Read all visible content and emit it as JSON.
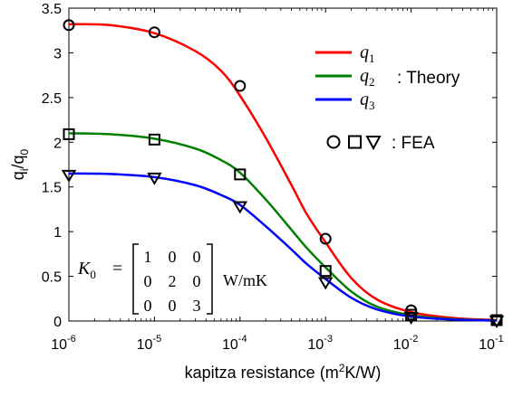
{
  "chart_data": {
    "type": "line",
    "xlabel": "kapitza resistance (m",
    "xlabel_sup": "2",
    "xlabel_tail": "K/W)",
    "ylabel_base": "q",
    "ylabel_sub1": "i",
    "ylabel_mid": "/q",
    "ylabel_sub2": "0",
    "x_scale": "log",
    "xlim": [
      1e-06,
      0.1
    ],
    "ylim": [
      0,
      3.5
    ],
    "x_ticks": [
      {
        "base": "10",
        "exp": "-6"
      },
      {
        "base": "10",
        "exp": "-5"
      },
      {
        "base": "10",
        "exp": "-4"
      },
      {
        "base": "10",
        "exp": "-3"
      },
      {
        "base": "10",
        "exp": "-2"
      },
      {
        "base": "10",
        "exp": "-1"
      }
    ],
    "y_ticks": [
      "0",
      "0.5",
      "1",
      "1.5",
      "2",
      "2.5",
      "3",
      "3.5"
    ],
    "grid": false,
    "legend_position": "top-right",
    "theory_label": ": Theory",
    "fea_label": ": FEA",
    "matrix": {
      "lhs_base": "K",
      "lhs_sub": "0",
      "equals": "=",
      "rows": [
        [
          "1",
          "0",
          "0"
        ],
        [
          "0",
          "2",
          "0"
        ],
        [
          "0",
          "0",
          "3"
        ]
      ],
      "unit": "W/mK"
    },
    "series": [
      {
        "name_base": "q",
        "name_sub": "1",
        "color": "#ff0000",
        "marker": "circle",
        "curve": {
          "x": [
            1e-06,
            3e-06,
            1e-05,
            3e-05,
            6e-05,
            0.0001,
            0.0002,
            0.0004,
            0.0006,
            0.001,
            0.002,
            0.004,
            0.01,
            0.03,
            0.1
          ],
          "y": [
            3.32,
            3.31,
            3.22,
            3.02,
            2.8,
            2.52,
            2.05,
            1.52,
            1.2,
            0.88,
            0.48,
            0.24,
            0.1,
            0.035,
            0.01
          ]
        },
        "points": {
          "x": [
            1e-06,
            1e-05,
            0.0001,
            0.001,
            0.01,
            0.1
          ],
          "y": [
            3.31,
            3.23,
            2.63,
            0.92,
            0.12,
            0.01
          ]
        }
      },
      {
        "name_base": "q",
        "name_sub": "2",
        "color": "#008000",
        "marker": "square",
        "curve": {
          "x": [
            1e-06,
            3e-06,
            1e-05,
            3e-05,
            6e-05,
            0.0001,
            0.0002,
            0.0004,
            0.0006,
            0.001,
            0.002,
            0.004,
            0.01,
            0.03,
            0.1
          ],
          "y": [
            2.1,
            2.09,
            2.04,
            1.93,
            1.8,
            1.66,
            1.36,
            1.02,
            0.82,
            0.6,
            0.33,
            0.16,
            0.065,
            0.022,
            0.006
          ]
        },
        "points": {
          "x": [
            1e-06,
            1e-05,
            0.0001,
            0.001,
            0.01,
            0.1
          ],
          "y": [
            2.09,
            2.03,
            1.64,
            0.56,
            0.07,
            0.01
          ]
        }
      },
      {
        "name_base": "q",
        "name_sub": "3",
        "color": "#0000ff",
        "marker": "triangle-down",
        "curve": {
          "x": [
            1e-06,
            3e-06,
            1e-05,
            3e-05,
            6e-05,
            0.0001,
            0.0002,
            0.0004,
            0.0006,
            0.001,
            0.002,
            0.004,
            0.01,
            0.03,
            0.1
          ],
          "y": [
            1.65,
            1.645,
            1.61,
            1.52,
            1.41,
            1.3,
            1.06,
            0.8,
            0.64,
            0.47,
            0.26,
            0.13,
            0.05,
            0.017,
            0.005
          ]
        },
        "points": {
          "x": [
            1e-06,
            1e-05,
            0.0001,
            0.001,
            0.01,
            0.1
          ],
          "y": [
            1.63,
            1.6,
            1.28,
            0.43,
            0.04,
            0.0
          ]
        }
      }
    ]
  }
}
